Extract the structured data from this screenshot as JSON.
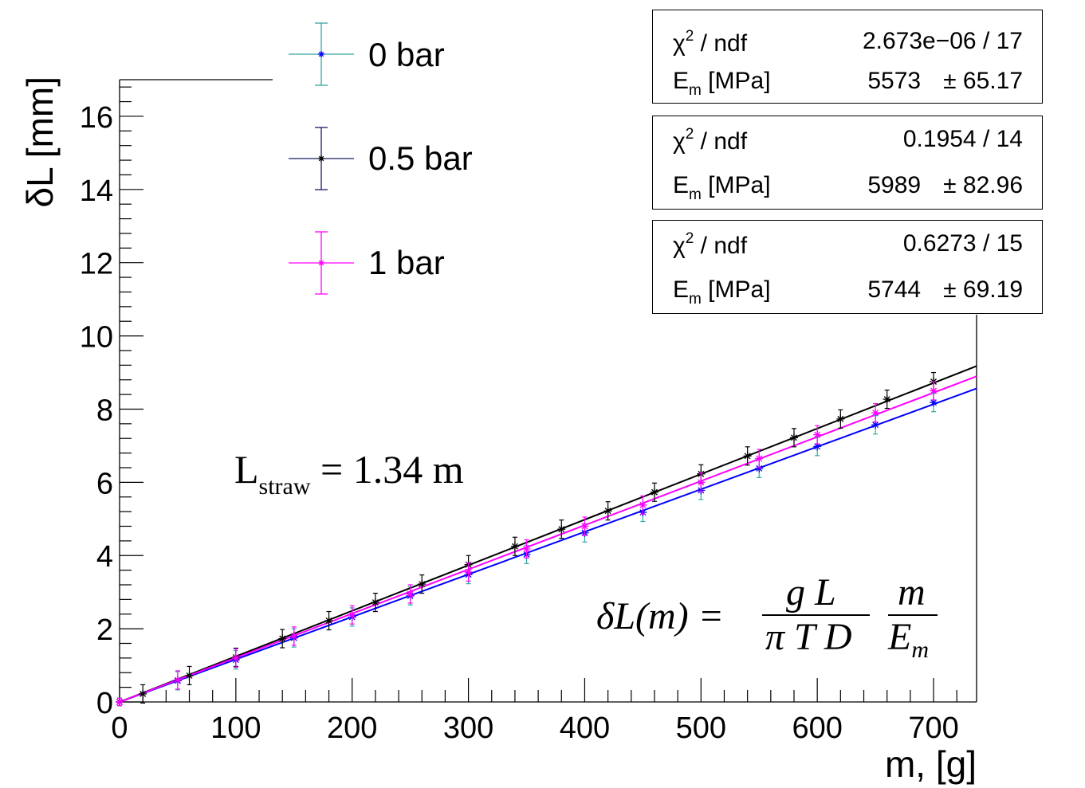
{
  "chart_data": {
    "type": "scatter",
    "title": "",
    "xlabel": "m, [g]",
    "ylabel": "δL [mm]",
    "xlim": [
      0,
      737
    ],
    "ylim": [
      0,
      17
    ],
    "x_ticks": [
      "0",
      "100",
      "200",
      "300",
      "400",
      "500",
      "600",
      "700"
    ],
    "y_ticks": [
      "0",
      "2",
      "4",
      "6",
      "8",
      "10",
      "12",
      "14",
      "16"
    ],
    "series": [
      {
        "name": "0 bar",
        "marker_color": "#0000ff",
        "error_color": "#33a8a0",
        "fit_color": "#0000ff",
        "fit_slope": 0.01162,
        "x": [
          0,
          50,
          100,
          150,
          200,
          250,
          300,
          350,
          400,
          450,
          500,
          550,
          600,
          650,
          700
        ],
        "y": [
          0.0,
          0.58,
          1.15,
          1.75,
          2.32,
          2.9,
          3.48,
          4.03,
          4.62,
          5.18,
          5.78,
          6.38,
          6.98,
          7.57,
          8.18
        ],
        "err": [
          0.1,
          0.25,
          0.25,
          0.25,
          0.25,
          0.25,
          0.25,
          0.25,
          0.25,
          0.25,
          0.25,
          0.25,
          0.25,
          0.25,
          0.25
        ]
      },
      {
        "name": "0.5 bar",
        "marker_color": "#000000",
        "error_color": "#000000",
        "fit_color": "#000000",
        "fit_slope": 0.01245,
        "x": [
          0,
          20,
          60,
          100,
          140,
          180,
          220,
          260,
          300,
          340,
          380,
          420,
          460,
          500,
          540,
          580,
          620,
          660,
          700
        ],
        "y": [
          0.0,
          0.22,
          0.72,
          1.22,
          1.73,
          2.22,
          2.72,
          3.22,
          3.75,
          4.25,
          4.72,
          5.22,
          5.73,
          6.23,
          6.72,
          7.22,
          7.73,
          8.27,
          8.75
        ],
        "err": [
          0.1,
          0.25,
          0.25,
          0.25,
          0.25,
          0.25,
          0.25,
          0.25,
          0.25,
          0.25,
          0.25,
          0.25,
          0.25,
          0.25,
          0.25,
          0.25,
          0.25,
          0.25,
          0.25
        ]
      },
      {
        "name": "1 bar",
        "marker_color": "#ff00ff",
        "error_color": "#ff00ff",
        "fit_color": "#ff00ff",
        "fit_slope": 0.01207,
        "x": [
          0,
          50,
          100,
          150,
          200,
          250,
          300,
          350,
          400,
          450,
          500,
          550,
          600,
          650,
          700
        ],
        "y": [
          0.0,
          0.6,
          1.2,
          1.8,
          2.38,
          2.95,
          3.55,
          4.18,
          4.8,
          5.38,
          6.0,
          6.65,
          7.3,
          7.9,
          8.5
        ],
        "err": [
          0.1,
          0.25,
          0.25,
          0.25,
          0.25,
          0.25,
          0.25,
          0.25,
          0.25,
          0.25,
          0.25,
          0.25,
          0.25,
          0.25,
          0.25
        ]
      }
    ],
    "legend": [
      {
        "label": "0 bar",
        "color": "#33a8a0",
        "marker_color": "#0000ff"
      },
      {
        "label": "0.5 bar",
        "color": "#1a1a66",
        "marker_color": "#000000"
      },
      {
        "label": "1 bar",
        "color": "#ff00ff",
        "marker_color": "#ff00ff"
      }
    ],
    "stat_boxes": [
      {
        "chi_label": "χ",
        "chi_sup": "2",
        "chi_rest": " / ndf",
        "chi_value": "2.673e−06 / 17",
        "em_label": "E",
        "em_sub": "m",
        "em_rest": " [MPa]",
        "em_value": "5573",
        "em_error": "± 65.17"
      },
      {
        "chi_label": "χ",
        "chi_sup": "2",
        "chi_rest": " / ndf",
        "chi_value": "0.1954 / 14",
        "em_label": "E",
        "em_sub": "m",
        "em_rest": " [MPa]",
        "em_value": "5989",
        "em_error": "± 82.96"
      },
      {
        "chi_label": "χ",
        "chi_sup": "2",
        "chi_rest": " / ndf",
        "chi_value": "0.6273 / 15",
        "em_label": "E",
        "em_sub": "m",
        "em_rest": " [MPa]",
        "em_value": "5744",
        "em_error": "± 69.19"
      }
    ],
    "annotations": {
      "lstraw_main": "L",
      "lstraw_sub": "straw",
      "lstraw_rest": " = 1.34 m",
      "formula_lhs": "δL(m) =",
      "formula_num1": "g L",
      "formula_den1": "π T D",
      "formula_num2": "m",
      "formula_den2_main": "E",
      "formula_den2_sub": "m"
    }
  }
}
